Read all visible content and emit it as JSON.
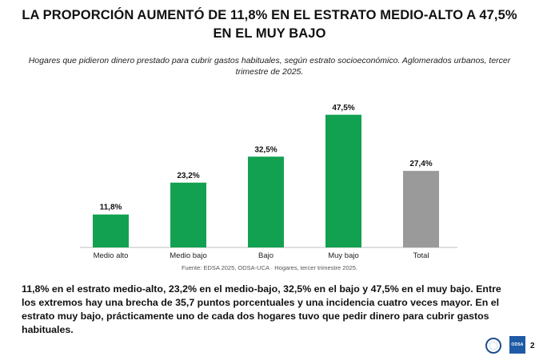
{
  "title": "LA PROPORCIÓN AUMENTÓ DE 11,8% EN EL ESTRATO MEDIO-ALTO A 47,5% EN EL MUY BAJO",
  "subtitle": "Hogares que pidieron dinero prestado para cubrir gastos habituales, según estrato socioeconómico. Aglomerados urbanos, tercer trimestre de 2025.",
  "source": "Fuente: EDSA 2025, ODSA-UCA · Hogares, tercer trimestre 2025.",
  "paragraph": "11,8% en el estrato medio-alto, 23,2% en el medio-bajo, 32,5% en el bajo y 47,5% en el muy bajo. Entre los extremos hay una brecha de 35,7 puntos porcentuales y una incidencia cuatro veces mayor. En el estrato muy bajo, prácticamente uno de cada dos hogares tuvo que pedir dinero para cubrir gastos habituales.",
  "logos": {
    "odsa_text": "ODSA"
  },
  "page_number": "2",
  "colors": {
    "strata": "#12a150",
    "total": "#9a9a9a",
    "axis": "#bdbdbd"
  },
  "chart_data": {
    "type": "bar",
    "title": "",
    "xlabel": "",
    "ylabel": "",
    "categories": [
      "Medio alto",
      "Medio bajo",
      "Bajo",
      "Muy bajo",
      "Total"
    ],
    "values": [
      11.8,
      23.2,
      32.5,
      47.5,
      27.4
    ],
    "value_labels": [
      "11,8%",
      "23,2%",
      "32,5%",
      "47,5%",
      "27,4%"
    ],
    "ylim": [
      0,
      50
    ],
    "grid": false,
    "legend": "none"
  }
}
